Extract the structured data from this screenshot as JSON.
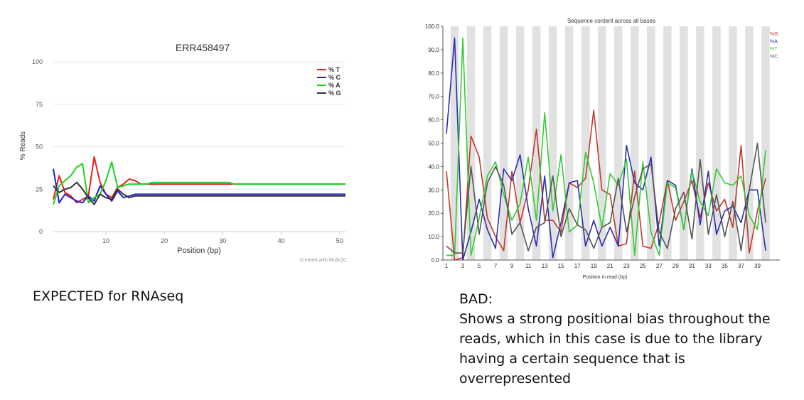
{
  "charts": {
    "left": {
      "title": "ERR458497",
      "xlabel": "Position (bp)",
      "ylabel": "% Reads",
      "credit": "Created with MultiQC",
      "yticks": [
        "0",
        "25",
        "50",
        "75",
        "100"
      ],
      "xticks": [
        "10",
        "20",
        "30",
        "40",
        "50"
      ]
    },
    "right": {
      "title": "Sequence content across all bases",
      "xlabel": "Position in read (bp)",
      "yticks": [
        "0.0",
        "10.0",
        "20.0",
        "30.0",
        "40.0",
        "50.0",
        "60.0",
        "70.0",
        "80.0",
        "90.0",
        "100.0"
      ],
      "xticks": [
        "1",
        "3",
        "5",
        "7",
        "9",
        "11",
        "13",
        "15",
        "17",
        "19",
        "21",
        "23",
        "25",
        "27",
        "29",
        "31",
        "33",
        "35",
        "37",
        "39"
      ]
    }
  },
  "captions": {
    "left": "EXPECTED for RNAseq",
    "right_lines": [
      "BAD:",
      "Shows a strong positional bias throughout the",
      "reads, which in this case is due to the library",
      "having a certain sequence that is",
      "overrepresented"
    ]
  },
  "chart_data": [
    {
      "type": "line",
      "title": "ERR458497",
      "xlabel": "Position (bp)",
      "ylabel": "% Reads",
      "xlim": [
        1,
        51
      ],
      "ylim": [
        0,
        100
      ],
      "grid": true,
      "legend_position": "top-right",
      "x": [
        1,
        2,
        3,
        4,
        5,
        6,
        7,
        8,
        9,
        10,
        11,
        12,
        13,
        14,
        15,
        16,
        17,
        18,
        19,
        20,
        21,
        22,
        23,
        24,
        25,
        26,
        27,
        28,
        29,
        30,
        31,
        32,
        33,
        34,
        35,
        36,
        37,
        38,
        39,
        40,
        41,
        42,
        43,
        44,
        45,
        46,
        47,
        48,
        49,
        50,
        51
      ],
      "series": [
        {
          "name": "% T",
          "color": "#e8201e",
          "values": [
            19,
            33,
            23,
            21,
            17,
            19,
            21,
            44,
            29,
            22,
            20,
            26,
            28,
            31,
            30,
            28,
            28,
            28,
            28,
            28,
            28,
            28,
            28,
            28,
            28,
            28,
            28,
            28,
            28,
            28,
            28,
            28,
            28,
            28,
            28,
            28,
            28,
            28,
            28,
            28,
            28,
            28,
            28,
            28,
            28,
            28,
            28,
            28,
            28,
            28,
            28
          ]
        },
        {
          "name": "% C",
          "color": "#1f23c8",
          "values": [
            37,
            17,
            22,
            20,
            18,
            17,
            21,
            18,
            27,
            22,
            18,
            24,
            20,
            21,
            22,
            22,
            22,
            22,
            22,
            22,
            22,
            22,
            22,
            22,
            22,
            22,
            22,
            22,
            22,
            22,
            22,
            22,
            22,
            22,
            22,
            22,
            22,
            22,
            22,
            22,
            22,
            22,
            22,
            22,
            22,
            22,
            22,
            22,
            22,
            22,
            22
          ]
        },
        {
          "name": "% A",
          "color": "#1ed21e",
          "values": [
            16,
            27,
            30,
            33,
            38,
            40,
            17,
            20,
            22,
            30,
            41,
            26,
            27,
            28,
            28,
            28,
            28,
            29,
            29,
            29,
            29,
            29,
            29,
            29,
            29,
            29,
            29,
            29,
            29,
            29,
            29,
            28,
            28,
            28,
            28,
            28,
            28,
            28,
            28,
            28,
            28,
            28,
            28,
            28,
            28,
            28,
            28,
            28,
            28,
            28,
            28
          ]
        },
        {
          "name": "% G",
          "color": "#333333",
          "values": [
            27,
            23,
            25,
            26,
            29,
            25,
            20,
            16,
            22,
            20,
            19,
            25,
            22,
            20,
            21,
            21,
            21,
            21,
            21,
            21,
            21,
            21,
            21,
            21,
            21,
            21,
            21,
            21,
            21,
            21,
            21,
            21,
            21,
            21,
            21,
            21,
            21,
            21,
            21,
            21,
            21,
            21,
            21,
            21,
            21,
            21,
            21,
            21,
            21,
            21,
            21
          ]
        }
      ]
    },
    {
      "type": "line",
      "title": "Sequence content across all bases",
      "xlabel": "Position in read (bp)",
      "ylabel": "",
      "xlim": [
        1,
        40
      ],
      "ylim": [
        0,
        100
      ],
      "grid": false,
      "legend_position": "top-right",
      "x": [
        1,
        2,
        3,
        4,
        5,
        6,
        7,
        8,
        9,
        10,
        11,
        12,
        13,
        14,
        15,
        16,
        17,
        18,
        19,
        20,
        21,
        22,
        23,
        24,
        25,
        26,
        27,
        28,
        29,
        30,
        31,
        32,
        33,
        34,
        35,
        36,
        37,
        38,
        39,
        40
      ],
      "series": [
        {
          "name": "%G",
          "color": "#c0392b",
          "values": [
            38,
            0,
            1,
            53,
            44,
            18,
            10,
            4,
            38,
            16,
            30,
            56,
            17,
            17,
            12,
            33,
            31,
            35,
            64,
            30,
            28,
            6,
            7,
            38,
            6,
            5,
            16,
            34,
            17,
            25,
            34,
            18,
            33,
            21,
            26,
            14,
            49,
            3,
            21,
            35
          ]
        },
        {
          "name": "%A",
          "color": "#2c2cb0",
          "values": [
            54,
            95,
            0,
            12,
            26,
            13,
            5,
            39,
            34,
            45,
            22,
            6,
            36,
            1,
            16,
            33,
            34,
            6,
            17,
            6,
            14,
            6,
            49,
            33,
            30,
            44,
            6,
            34,
            32,
            13,
            39,
            15,
            38,
            11,
            21,
            23,
            16,
            30,
            30,
            4
          ]
        },
        {
          "name": "%T",
          "color": "#33cc33",
          "values": [
            2,
            2,
            95,
            2,
            18,
            36,
            42,
            28,
            17,
            24,
            44,
            17,
            63,
            21,
            45,
            12,
            15,
            46,
            33,
            14,
            37,
            32,
            43,
            2,
            42,
            12,
            2,
            33,
            31,
            13,
            38,
            25,
            19,
            39,
            33,
            32,
            36,
            19,
            13,
            47
          ]
        },
        {
          "name": "%C",
          "color": "#555555",
          "values": [
            6,
            3,
            3,
            40,
            11,
            33,
            40,
            32,
            11,
            16,
            4,
            14,
            16,
            36,
            10,
            22,
            15,
            13,
            5,
            14,
            16,
            35,
            12,
            27,
            39,
            41,
            12,
            5,
            22,
            29,
            9,
            43,
            11,
            28,
            10,
            25,
            4,
            30,
            50,
            16
          ]
        }
      ]
    }
  ]
}
